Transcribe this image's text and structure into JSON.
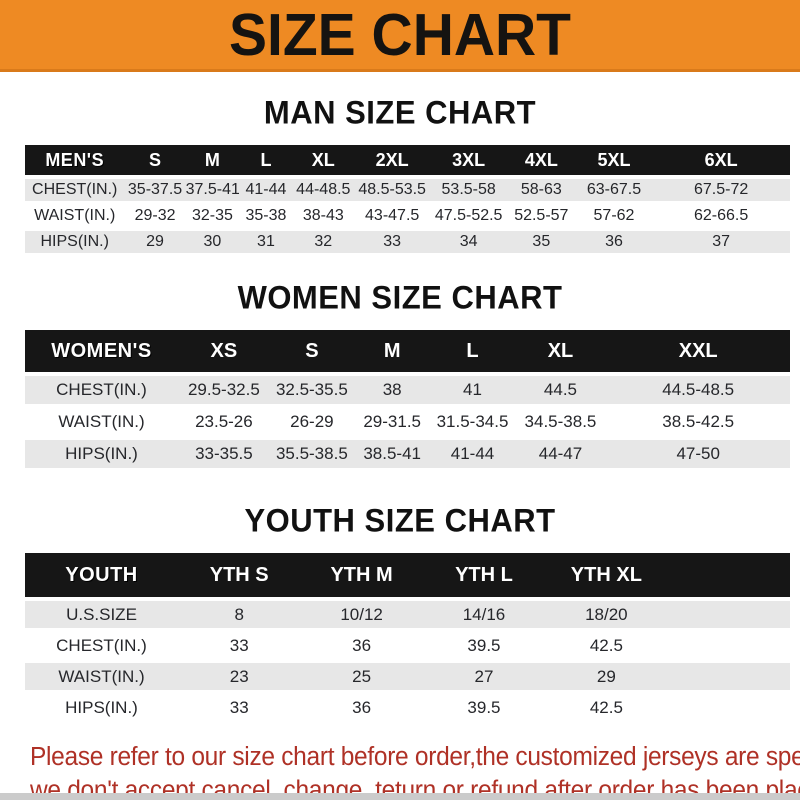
{
  "banner": {
    "title": "SIZE CHART",
    "bg_color": "#EE8A23",
    "text_color": "#151311"
  },
  "sections": [
    {
      "heading": "MAN SIZE CHART",
      "header_label": "MEN'S",
      "columns": [
        "S",
        "M",
        "L",
        "XL",
        "2XL",
        "3XL",
        "4XL",
        "5XL",
        "6XL"
      ],
      "rows": [
        {
          "label": "CHEST(IN.)",
          "values": [
            "35-37.5",
            "37.5-41",
            "41-44",
            "44-48.5",
            "48.5-53.5",
            "53.5-58",
            "58-63",
            "63-67.5",
            "67.5-72"
          ]
        },
        {
          "label": "WAIST(IN.)",
          "values": [
            "29-32",
            "32-35",
            "35-38",
            "38-43",
            "43-47.5",
            "47.5-52.5",
            "52.5-57",
            "57-62",
            "62-66.5"
          ]
        },
        {
          "label": "HIPS(IN.)",
          "values": [
            "29",
            "30",
            "31",
            "32",
            "33",
            "34",
            "35",
            "36",
            "37"
          ]
        }
      ]
    },
    {
      "heading": "WOMEN SIZE CHART",
      "header_label": "WOMEN'S",
      "columns": [
        "XS",
        "S",
        "M",
        "L",
        "XL",
        "XXL"
      ],
      "rows": [
        {
          "label": "CHEST(IN.)",
          "values": [
            "29.5-32.5",
            "32.5-35.5",
            "38",
            "41",
            "44.5",
            "44.5-48.5"
          ]
        },
        {
          "label": "WAIST(IN.)",
          "values": [
            "23.5-26",
            "26-29",
            "29-31.5",
            "31.5-34.5",
            "34.5-38.5",
            "38.5-42.5"
          ]
        },
        {
          "label": "HIPS(IN.)",
          "values": [
            "33-35.5",
            "35.5-38.5",
            "38.5-41",
            "41-44",
            "44-47",
            "47-50"
          ]
        }
      ]
    },
    {
      "heading": "YOUTH SIZE CHART",
      "header_label": "YOUTH",
      "columns": [
        "YTH S",
        "YTH M",
        "YTH L",
        "YTH XL"
      ],
      "rows": [
        {
          "label": "U.S.SIZE",
          "values": [
            "8",
            "10/12",
            "14/16",
            "18/20"
          ]
        },
        {
          "label": "CHEST(IN.)",
          "values": [
            "33",
            "36",
            "39.5",
            "42.5"
          ]
        },
        {
          "label": "WAIST(IN.)",
          "values": [
            "23",
            "25",
            "27",
            "29"
          ]
        },
        {
          "label": "HIPS(IN.)",
          "values": [
            "33",
            "36",
            "39.5",
            "42.5"
          ]
        }
      ]
    }
  ],
  "footer": {
    "line1": "Please refer to our size chart before order,the customized jerseys are special products,",
    "line2": "we don't accept cancel, change, teturn or refund after order has been placed!",
    "text_color": "#AF3126"
  }
}
